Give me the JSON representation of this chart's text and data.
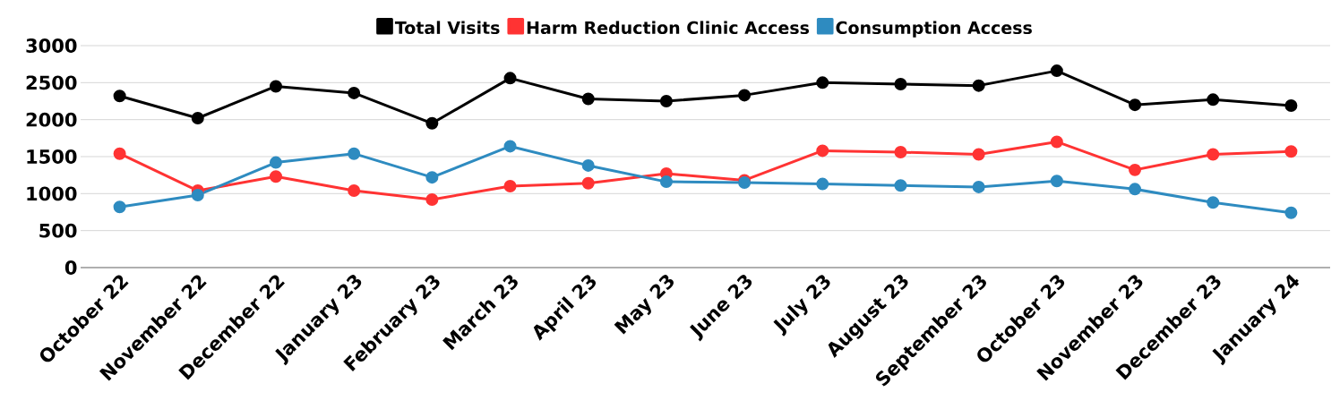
{
  "chart_data": {
    "type": "line",
    "categories": [
      "October 22",
      "November 22",
      "December 22",
      "January 23",
      "February 23",
      "March 23",
      "April 23",
      "May 23",
      "June 23",
      "July 23",
      "August 23",
      "September 23",
      "October 23",
      "November 23",
      "December 23",
      "January 24"
    ],
    "series": [
      {
        "name": "Total Visits",
        "color": "#000000",
        "values": [
          2320,
          2020,
          2450,
          2360,
          1950,
          2560,
          2280,
          2250,
          2330,
          2500,
          2480,
          2460,
          2660,
          2200,
          2270,
          2190
        ]
      },
      {
        "name": "Harm Reduction Clinic Access",
        "color": "#ff3333",
        "values": [
          1540,
          1040,
          1230,
          1040,
          920,
          1100,
          1140,
          1270,
          1180,
          1580,
          1560,
          1530,
          1700,
          1320,
          1530,
          1570
        ]
      },
      {
        "name": "Consumption Access",
        "color": "#2e8bc0",
        "values": [
          820,
          980,
          1420,
          1540,
          1220,
          1640,
          1380,
          1160,
          1150,
          1130,
          1110,
          1090,
          1170,
          1060,
          880,
          740
        ]
      }
    ],
    "ylim": [
      0,
      3000
    ],
    "yticks": [
      0,
      500,
      1000,
      1500,
      2000,
      2500,
      3000
    ],
    "grid": "y",
    "legend": "top",
    "marker": "circle",
    "line_style": "solid"
  }
}
